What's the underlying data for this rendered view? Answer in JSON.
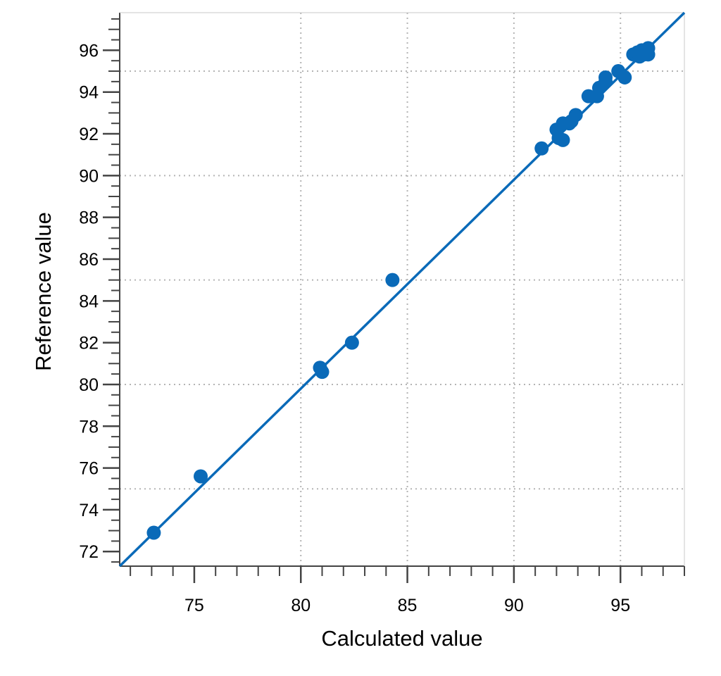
{
  "chart_data": {
    "type": "scatter",
    "xlabel": "Calculated value",
    "ylabel": "Reference value",
    "xlim": [
      71.5,
      98
    ],
    "ylim": [
      71.3,
      97.8
    ],
    "x_ticks": [
      75,
      80,
      85,
      90,
      95
    ],
    "y_ticks": [
      72,
      74,
      76,
      78,
      80,
      82,
      84,
      86,
      88,
      90,
      92,
      94,
      96
    ],
    "x_grid": [
      80,
      85,
      90,
      95
    ],
    "y_grid": [
      75,
      80,
      85,
      90,
      95
    ],
    "grid": true,
    "legend": "none",
    "colors": {
      "series": "#0a6ab8",
      "grid": "#b4b4b4",
      "axis": "#444444"
    },
    "fit_line": {
      "x": [
        71.5,
        98
      ],
      "y": [
        71.3,
        97.8
      ]
    },
    "points": [
      {
        "x": 73.1,
        "y": 72.9
      },
      {
        "x": 75.3,
        "y": 75.6
      },
      {
        "x": 80.9,
        "y": 80.8
      },
      {
        "x": 81.0,
        "y": 80.6
      },
      {
        "x": 82.4,
        "y": 82.0
      },
      {
        "x": 84.3,
        "y": 85.0
      },
      {
        "x": 91.3,
        "y": 91.3
      },
      {
        "x": 92.0,
        "y": 92.2
      },
      {
        "x": 92.1,
        "y": 91.8
      },
      {
        "x": 92.3,
        "y": 92.5
      },
      {
        "x": 92.3,
        "y": 91.7
      },
      {
        "x": 92.6,
        "y": 92.5
      },
      {
        "x": 92.7,
        "y": 92.6
      },
      {
        "x": 92.9,
        "y": 92.9
      },
      {
        "x": 93.5,
        "y": 93.8
      },
      {
        "x": 93.9,
        "y": 93.8
      },
      {
        "x": 94.0,
        "y": 94.2
      },
      {
        "x": 94.3,
        "y": 94.7
      },
      {
        "x": 94.3,
        "y": 94.5
      },
      {
        "x": 94.9,
        "y": 95.0
      },
      {
        "x": 95.2,
        "y": 94.7
      },
      {
        "x": 95.6,
        "y": 95.8
      },
      {
        "x": 95.8,
        "y": 95.9
      },
      {
        "x": 95.9,
        "y": 95.7
      },
      {
        "x": 96.0,
        "y": 96.0
      },
      {
        "x": 96.1,
        "y": 95.8
      },
      {
        "x": 96.2,
        "y": 95.9
      },
      {
        "x": 96.3,
        "y": 96.1
      },
      {
        "x": 96.3,
        "y": 95.8
      }
    ]
  }
}
